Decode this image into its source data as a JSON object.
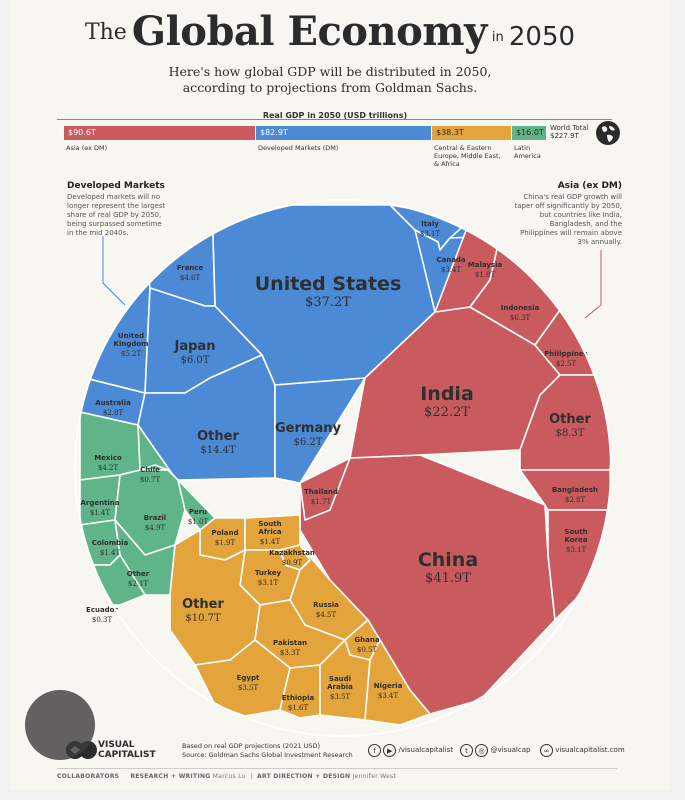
{
  "header": {
    "title_pre": "The",
    "title_main": "Global Economy",
    "title_in": "in",
    "title_year": "2050",
    "subtitle_line1": "Here's how global GDP will be distributed in 2050,",
    "subtitle_line2": "according to projections from Goldman Sachs."
  },
  "summary_bar": {
    "title": "Real GDP in 2050 (USD trillions)",
    "segments": [
      {
        "value": "$90.6T",
        "label": "Asia (ex DM)",
        "color": "#c95b5e"
      },
      {
        "value": "$82.9T",
        "label": "Developed Markets (DM)",
        "color": "#4c8ad6"
      },
      {
        "value": "$38.3T",
        "label": "Central & Eastern Europe, Middle East, & Africa",
        "color": "#e3a43b"
      },
      {
        "value": "$16.0T",
        "label": "Latin America",
        "color": "#5fb48a"
      }
    ],
    "world_total_label": "World Total",
    "world_total_value": "$227.9T"
  },
  "annotations": {
    "developed_title": "Developed Markets",
    "developed_text": "Developed markets will no longer represent the largest share of real GDP by 2050, being surpassed sometime in the mid 2040s.",
    "asia_title": "Asia (ex DM)",
    "asia_text": "China's real GDP growth will taper off significantly by 2050, but countries like India, Bangladesh, and the Philippines will remain above 3% annually."
  },
  "chart_data": {
    "type": "voronoi-treemap",
    "unit": "USD trillions",
    "colors": {
      "asia": "#c95b5e",
      "developed": "#4c8ad6",
      "emea": "#e3a43b",
      "latam": "#5fb48a"
    },
    "groups": [
      {
        "name": "Asia (ex DM)",
        "total": 90.6,
        "color": "#c95b5e",
        "items": [
          {
            "name": "China",
            "value": 41.9,
            "label": "$41.9T"
          },
          {
            "name": "India",
            "value": 22.2,
            "label": "$22.2T"
          },
          {
            "name": "Other",
            "value": 8.3,
            "label": "$8.3T"
          },
          {
            "name": "Indonesia",
            "value": 6.3,
            "label": "$6.3T"
          },
          {
            "name": "South Korea",
            "value": 3.1,
            "label": "$3.1T"
          },
          {
            "name": "Bangladesh",
            "value": 2.8,
            "label": "$2.8T"
          },
          {
            "name": "Philippines",
            "value": 2.5,
            "label": "$2.5T"
          },
          {
            "name": "Malaysia",
            "value": 1.8,
            "label": "$1.8T"
          },
          {
            "name": "Thailand",
            "value": 1.7,
            "label": "$1.7T"
          }
        ]
      },
      {
        "name": "Developed Markets (DM)",
        "total": 82.9,
        "color": "#4c8ad6",
        "items": [
          {
            "name": "United States",
            "value": 37.2,
            "label": "$37.2T"
          },
          {
            "name": "Other",
            "value": 14.4,
            "label": "$14.4T"
          },
          {
            "name": "Germany",
            "value": 6.2,
            "label": "$6.2T"
          },
          {
            "name": "Japan",
            "value": 6.0,
            "label": "$6.0T"
          },
          {
            "name": "United Kingdom",
            "value": 5.2,
            "label": "$5.2T"
          },
          {
            "name": "France",
            "value": 4.6,
            "label": "$4.6T"
          },
          {
            "name": "Canada",
            "value": 3.4,
            "label": "$3.4T"
          },
          {
            "name": "Italy",
            "value": 3.1,
            "label": "$3.1T"
          },
          {
            "name": "Australia",
            "value": 2.8,
            "label": "$2.8T"
          }
        ]
      },
      {
        "name": "Central & Eastern Europe, Middle East, & Africa",
        "total": 38.3,
        "color": "#e3a43b",
        "items": [
          {
            "name": "Other",
            "value": 10.7,
            "label": "$10.7T"
          },
          {
            "name": "Russia",
            "value": 4.5,
            "label": "$4.5T"
          },
          {
            "name": "Egypt",
            "value": 3.5,
            "label": "$3.5T"
          },
          {
            "name": "Saudi Arabia",
            "value": 3.5,
            "label": "$3.5T"
          },
          {
            "name": "Nigeria",
            "value": 3.4,
            "label": "$3.4T"
          },
          {
            "name": "Pakistan",
            "value": 3.3,
            "label": "$3.3T"
          },
          {
            "name": "Turkey",
            "value": 3.1,
            "label": "$3.1T"
          },
          {
            "name": "Poland",
            "value": 1.9,
            "label": "$1.9T"
          },
          {
            "name": "Ethiopia",
            "value": 1.6,
            "label": "$1.6T"
          },
          {
            "name": "South Africa",
            "value": 1.4,
            "label": "$1.4T"
          },
          {
            "name": "Kazakhstan",
            "value": 0.9,
            "label": "$0.9T"
          },
          {
            "name": "Ghana",
            "value": 0.5,
            "label": "$0.5T"
          }
        ]
      },
      {
        "name": "Latin America",
        "total": 16.0,
        "color": "#5fb48a",
        "items": [
          {
            "name": "Brazil",
            "value": 4.9,
            "label": "$4.9T"
          },
          {
            "name": "Mexico",
            "value": 4.2,
            "label": "$4.2T"
          },
          {
            "name": "Other",
            "value": 2.1,
            "label": "$2.1T"
          },
          {
            "name": "Argentina",
            "value": 1.4,
            "label": "$1.4T"
          },
          {
            "name": "Colombia",
            "value": 1.4,
            "label": "$1.4T"
          },
          {
            "name": "Peru",
            "value": 1.0,
            "label": "$1.0T"
          },
          {
            "name": "Chile",
            "value": 0.7,
            "label": "$0.7T"
          },
          {
            "name": "Ecuador",
            "value": 0.3,
            "label": "$0.3T"
          }
        ]
      }
    ]
  },
  "footer": {
    "logo_line1": "VISUAL",
    "logo_line2": "CAPITALIST",
    "note_line1": "Based on real GDP projections (2021 USD)",
    "note_line2": "Source: Goldman Sachs Global Investment Research",
    "social1": "/visualcapitalist",
    "social2": "@visualcap",
    "social3": "visualcapitalist.com",
    "collab_label": "COLLABORATORS",
    "research_label": "RESEARCH + WRITING",
    "research_name": "Marcus Lu",
    "art_label": "ART DIRECTION + DESIGN",
    "art_name": "Jennifer West"
  }
}
